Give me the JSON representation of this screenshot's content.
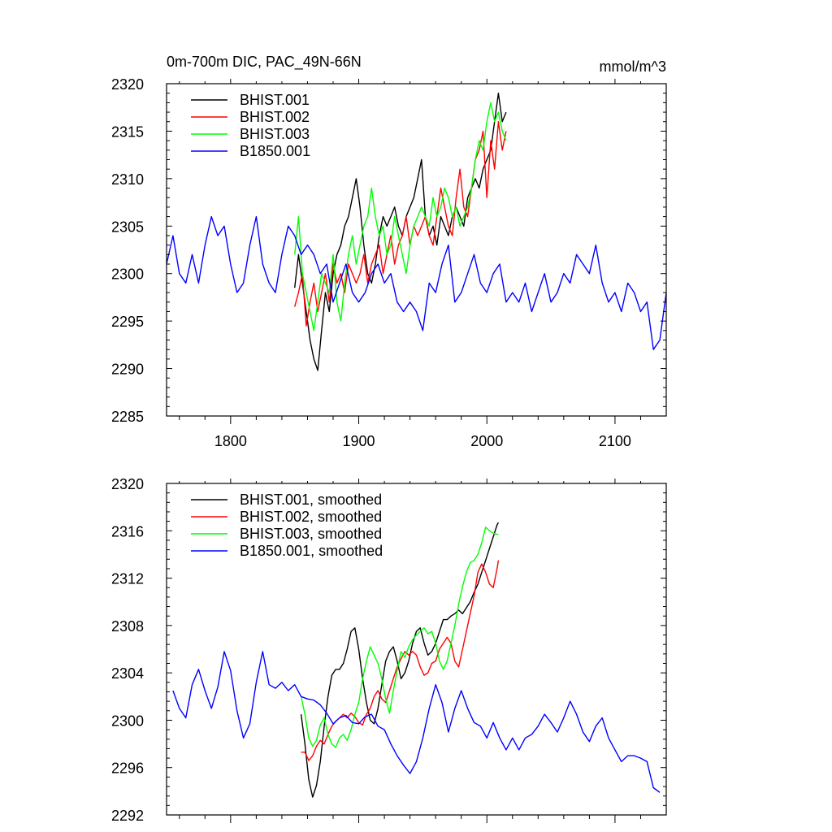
{
  "chart_data": [
    {
      "type": "line",
      "title_left": "0m-700m DIC, PAC_49N-66N",
      "title_right": "mmol/m^3",
      "xlim": [
        1750,
        2140
      ],
      "ylim": [
        2285,
        2320
      ],
      "xticks": [
        1800,
        1900,
        2000,
        2100
      ],
      "yticks": [
        2285,
        2290,
        2295,
        2300,
        2305,
        2310,
        2315,
        2320
      ],
      "show_x_tick_labels": true,
      "legend_position": "top-left",
      "series": [
        {
          "name": "BHIST.001",
          "color": "#000000",
          "x": [
            1850,
            1853,
            1856,
            1859,
            1862,
            1865,
            1868,
            1871,
            1874,
            1877,
            1880,
            1883,
            1886,
            1889,
            1892,
            1895,
            1898,
            1901,
            1904,
            1907,
            1910,
            1913,
            1916,
            1919,
            1922,
            1925,
            1928,
            1931,
            1934,
            1937,
            1940,
            1943,
            1946,
            1949,
            1952,
            1955,
            1958,
            1961,
            1964,
            1967,
            1970,
            1973,
            1976,
            1979,
            1982,
            1985,
            1988,
            1991,
            1994,
            1997,
            2000,
            2003,
            2006,
            2009,
            2012,
            2015
          ],
          "values": [
            2298.5,
            2302,
            2299,
            2296,
            2293,
            2291,
            2289.8,
            2294,
            2298,
            2296,
            2300,
            2302,
            2303,
            2305,
            2306,
            2308,
            2310,
            2307,
            2303,
            2300,
            2299,
            2301,
            2304,
            2306,
            2305,
            2306,
            2307,
            2305,
            2304,
            2306,
            2307,
            2308,
            2310,
            2312,
            2306,
            2304,
            2305,
            2303,
            2306,
            2305,
            2304,
            2306,
            2307,
            2306,
            2305,
            2308,
            2309,
            2310,
            2309,
            2311,
            2312,
            2313,
            2316,
            2319,
            2316,
            2317
          ]
        },
        {
          "name": "BHIST.002",
          "color": "#ff0000",
          "x": [
            1850,
            1853,
            1856,
            1859,
            1862,
            1865,
            1868,
            1871,
            1874,
            1877,
            1880,
            1883,
            1886,
            1889,
            1892,
            1895,
            1898,
            1901,
            1904,
            1907,
            1910,
            1913,
            1916,
            1919,
            1922,
            1925,
            1928,
            1931,
            1934,
            1937,
            1940,
            1943,
            1946,
            1949,
            1952,
            1955,
            1958,
            1961,
            1964,
            1967,
            1970,
            1973,
            1976,
            1979,
            1982,
            1985,
            1988,
            1991,
            1994,
            1997,
            2000,
            2003,
            2006,
            2009,
            2012,
            2015
          ],
          "values": [
            2296.5,
            2298,
            2300,
            2294.5,
            2297,
            2299,
            2296,
            2298,
            2300,
            2297,
            2301,
            2299,
            2300,
            2298,
            2301,
            2300,
            2299,
            2300,
            2302,
            2299,
            2301,
            2302,
            2303,
            2300,
            2302,
            2304,
            2301,
            2303,
            2304,
            2306,
            2303,
            2305,
            2304,
            2305,
            2306,
            2304,
            2303,
            2306,
            2309,
            2307,
            2305,
            2304,
            2308,
            2311,
            2307,
            2306,
            2309,
            2312,
            2313,
            2315,
            2308,
            2314,
            2311,
            2316,
            2313,
            2315
          ]
        },
        {
          "name": "BHIST.003",
          "color": "#00ff00",
          "x": [
            1850,
            1853,
            1856,
            1859,
            1862,
            1865,
            1868,
            1871,
            1874,
            1877,
            1880,
            1883,
            1886,
            1889,
            1892,
            1895,
            1898,
            1901,
            1904,
            1907,
            1910,
            1913,
            1916,
            1919,
            1922,
            1925,
            1928,
            1931,
            1934,
            1937,
            1940,
            1943,
            1946,
            1949,
            1952,
            1955,
            1958,
            1961,
            1964,
            1967,
            1970,
            1973,
            1976,
            1979,
            1982,
            1985,
            1988,
            1991,
            1994,
            1997,
            2000,
            2003,
            2006,
            2009,
            2012,
            2015
          ],
          "values": [
            2302,
            2306,
            2300,
            2298,
            2296,
            2294,
            2297,
            2300,
            2299,
            2298,
            2302,
            2297,
            2295,
            2299,
            2302,
            2304,
            2301,
            2303,
            2305,
            2306,
            2309,
            2306,
            2304,
            2305,
            2302,
            2303,
            2306,
            2304,
            2302,
            2300,
            2303,
            2305,
            2306,
            2307,
            2306,
            2305,
            2308,
            2306,
            2307,
            2309,
            2308,
            2306,
            2307,
            2305,
            2306,
            2307,
            2309,
            2312,
            2314,
            2313,
            2316,
            2318,
            2316,
            2317,
            2315,
            2314
          ]
        },
        {
          "name": "B1850.001",
          "color": "#0000ff",
          "x": [
            1750,
            1755,
            1760,
            1765,
            1770,
            1775,
            1780,
            1785,
            1790,
            1795,
            1800,
            1805,
            1810,
            1815,
            1820,
            1825,
            1830,
            1835,
            1840,
            1845,
            1850,
            1855,
            1860,
            1865,
            1870,
            1875,
            1880,
            1885,
            1890,
            1895,
            1900,
            1905,
            1910,
            1915,
            1920,
            1925,
            1930,
            1935,
            1940,
            1945,
            1950,
            1955,
            1960,
            1965,
            1970,
            1975,
            1980,
            1985,
            1990,
            1995,
            2000,
            2005,
            2010,
            2015,
            2020,
            2025,
            2030,
            2035,
            2040,
            2045,
            2050,
            2055,
            2060,
            2065,
            2070,
            2075,
            2080,
            2085,
            2090,
            2095,
            2100,
            2105,
            2110,
            2115,
            2120,
            2125,
            2130,
            2135,
            2140
          ],
          "values": [
            2301,
            2304,
            2300,
            2299,
            2302,
            2299,
            2303,
            2306,
            2304,
            2305,
            2301,
            2298,
            2299,
            2303,
            2306,
            2301,
            2299,
            2298,
            2302,
            2305,
            2304,
            2302,
            2303,
            2302,
            2300,
            2301,
            2297,
            2299,
            2301,
            2298,
            2297,
            2298,
            2300,
            2301,
            2299,
            2300,
            2297,
            2296,
            2297,
            2296,
            2294,
            2299,
            2298,
            2301,
            2303,
            2297,
            2298,
            2300,
            2302,
            2299,
            2298,
            2300,
            2301,
            2297,
            2298,
            2297,
            2299,
            2296,
            2298,
            2300,
            2297,
            2298,
            2300,
            2299,
            2302,
            2301,
            2300,
            2303,
            2299,
            2297,
            2298,
            2296,
            2299,
            2298,
            2296,
            2297,
            2292,
            2293,
            2298
          ]
        }
      ]
    },
    {
      "type": "line",
      "xlim": [
        1750,
        2140
      ],
      "ylim": [
        2292,
        2320
      ],
      "xticks": [
        1800,
        1900,
        2000,
        2100
      ],
      "yticks": [
        2292,
        2296,
        2300,
        2304,
        2308,
        2312,
        2316,
        2320
      ],
      "show_x_tick_labels": false,
      "legend_position": "top-left",
      "series": [
        {
          "name": "BHIST.001, smoothed",
          "color": "#000000",
          "x": [
            1855,
            1858,
            1861,
            1864,
            1867,
            1870,
            1873,
            1876,
            1879,
            1882,
            1885,
            1888,
            1891,
            1894,
            1897,
            1900,
            1903,
            1906,
            1909,
            1912,
            1915,
            1918,
            1921,
            1924,
            1927,
            1930,
            1933,
            1936,
            1939,
            1942,
            1945,
            1948,
            1951,
            1954,
            1957,
            1960,
            1963,
            1966,
            1969,
            1972,
            1975,
            1978,
            1981,
            1984,
            1987,
            1990,
            1993,
            1996,
            1999,
            2002,
            2005,
            2008,
            2009
          ],
          "values": [
            2300.5,
            2298,
            2295,
            2293.5,
            2294.5,
            2296.5,
            2299.5,
            2302,
            2303.8,
            2304.3,
            2304.3,
            2304.8,
            2306,
            2307.5,
            2307.8,
            2306,
            2303.5,
            2301.5,
            2300,
            2299.7,
            2301,
            2303,
            2305,
            2305.8,
            2306.2,
            2305,
            2303.5,
            2304,
            2305,
            2306.5,
            2307.5,
            2307.8,
            2306.5,
            2305.5,
            2305.8,
            2306.5,
            2307.5,
            2308.5,
            2308.5,
            2308.8,
            2309,
            2309.3,
            2309,
            2309.5,
            2310,
            2310.8,
            2311.5,
            2312.5,
            2313.5,
            2314.5,
            2315.5,
            2316.5,
            2316.7
          ]
        },
        {
          "name": "BHIST.002, smoothed",
          "color": "#ff0000",
          "x": [
            1855,
            1858,
            1861,
            1864,
            1867,
            1870,
            1873,
            1876,
            1879,
            1882,
            1885,
            1888,
            1891,
            1894,
            1897,
            1900,
            1903,
            1906,
            1909,
            1912,
            1915,
            1918,
            1921,
            1924,
            1927,
            1930,
            1933,
            1936,
            1939,
            1942,
            1945,
            1948,
            1951,
            1954,
            1957,
            1960,
            1963,
            1966,
            1969,
            1972,
            1975,
            1978,
            1981,
            1984,
            1987,
            1990,
            1993,
            1996,
            1999,
            2002,
            2005,
            2008,
            2009
          ],
          "values": [
            2297.3,
            2297.3,
            2296.6,
            2297,
            2297.8,
            2298.3,
            2298,
            2298.8,
            2299.5,
            2299.9,
            2300.2,
            2300.5,
            2300.2,
            2300.6,
            2300.3,
            2299.8,
            2299.6,
            2300.5,
            2301,
            2302,
            2302.5,
            2301.8,
            2301.5,
            2302.5,
            2303.5,
            2304.5,
            2305.2,
            2305.8,
            2305.5,
            2305.8,
            2305.5,
            2304.5,
            2303.8,
            2304,
            2304.8,
            2305,
            2306,
            2306.5,
            2307,
            2306.5,
            2305,
            2304.5,
            2306,
            2307.5,
            2309,
            2310.5,
            2312.5,
            2313.2,
            2312.5,
            2311.5,
            2311.2,
            2312.8,
            2313.5
          ]
        },
        {
          "name": "BHIST.003, smoothed",
          "color": "#00ff00",
          "x": [
            1855,
            1858,
            1861,
            1864,
            1867,
            1870,
            1873,
            1876,
            1879,
            1882,
            1885,
            1888,
            1891,
            1894,
            1897,
            1900,
            1903,
            1906,
            1909,
            1912,
            1915,
            1918,
            1921,
            1924,
            1927,
            1930,
            1933,
            1936,
            1939,
            1942,
            1945,
            1948,
            1951,
            1954,
            1957,
            1960,
            1963,
            1966,
            1969,
            1972,
            1975,
            1978,
            1981,
            1984,
            1987,
            1990,
            1993,
            1996,
            1999,
            2002,
            2005,
            2008,
            2009
          ],
          "values": [
            2302,
            2300.5,
            2298.5,
            2297.8,
            2298.3,
            2299.6,
            2300.2,
            2298.8,
            2298,
            2297.7,
            2298.5,
            2298.8,
            2298.3,
            2299.2,
            2300.5,
            2301.5,
            2303.5,
            2305,
            2306.2,
            2305.5,
            2304.8,
            2303.5,
            2301.8,
            2300.6,
            2302.5,
            2304.2,
            2305.8,
            2305.3,
            2306.2,
            2306.8,
            2307.2,
            2307.5,
            2307.8,
            2307.3,
            2307.5,
            2306.5,
            2305,
            2304.3,
            2305,
            2306.5,
            2308,
            2309.8,
            2311.3,
            2312.5,
            2313.3,
            2313.5,
            2314,
            2315,
            2316.3,
            2316,
            2315.8,
            2315.7,
            2315.7
          ]
        },
        {
          "name": "B1850.001, smoothed",
          "color": "#0000ff",
          "x": [
            1755,
            1760,
            1765,
            1770,
            1775,
            1780,
            1785,
            1790,
            1795,
            1800,
            1805,
            1810,
            1815,
            1820,
            1825,
            1830,
            1835,
            1840,
            1845,
            1850,
            1855,
            1860,
            1865,
            1870,
            1875,
            1880,
            1885,
            1890,
            1895,
            1900,
            1905,
            1910,
            1915,
            1920,
            1925,
            1930,
            1935,
            1940,
            1945,
            1950,
            1955,
            1960,
            1965,
            1970,
            1975,
            1980,
            1985,
            1990,
            1995,
            2000,
            2005,
            2010,
            2015,
            2020,
            2025,
            2030,
            2035,
            2040,
            2045,
            2050,
            2055,
            2060,
            2065,
            2070,
            2075,
            2080,
            2085,
            2090,
            2095,
            2100,
            2105,
            2110,
            2115,
            2120,
            2125,
            2130,
            2135
          ],
          "values": [
            2302.5,
            2301,
            2300.2,
            2303,
            2304.3,
            2302.5,
            2301,
            2302.8,
            2305.8,
            2304.2,
            2300.8,
            2298.5,
            2299.7,
            2303.2,
            2305.8,
            2303,
            2302.7,
            2303.2,
            2302.5,
            2303,
            2302,
            2301.8,
            2301.7,
            2301.3,
            2300.6,
            2299.7,
            2300.2,
            2300.4,
            2299.8,
            2299.7,
            2300.3,
            2300.5,
            2299.5,
            2299.2,
            2298,
            2297,
            2296.2,
            2295.5,
            2296.5,
            2298.5,
            2301,
            2303,
            2301.5,
            2299,
            2301,
            2302.5,
            2301,
            2299.8,
            2299.5,
            2298.5,
            2299.8,
            2298.5,
            2297.5,
            2298.5,
            2297.5,
            2298.5,
            2298.8,
            2299.5,
            2300.5,
            2299.8,
            2299,
            2300.2,
            2301.6,
            2300.5,
            2299,
            2298.2,
            2299.5,
            2300.2,
            2298.5,
            2297.5,
            2296.5,
            2297,
            2297,
            2296.8,
            2296.5,
            2294.3,
            2293.9
          ]
        }
      ]
    }
  ]
}
